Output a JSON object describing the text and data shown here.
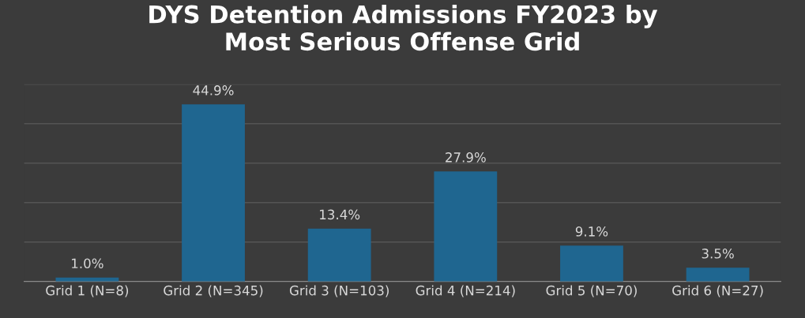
{
  "chart_data": {
    "type": "bar",
    "title": "DYS Detention Admissions FY2023 by\nMost Serious Offense Grid",
    "categories": [
      "Grid 1 (N=8)",
      "Grid 2 (N=345)",
      "Grid 3 (N=103)",
      "Grid 4 (N=214)",
      "Grid 5 (N=70)",
      "Grid 6 (N=27)"
    ],
    "values": [
      1.0,
      44.9,
      13.4,
      27.9,
      9.1,
      3.5
    ],
    "value_labels": [
      "1.0%",
      "44.9%",
      "13.4%",
      "27.9%",
      "9.1%",
      "3.5%"
    ],
    "color": "#1f6690",
    "ylim": [
      0,
      50
    ],
    "yticks": [
      {
        "value": 0,
        "label": null
      },
      {
        "value": 10,
        "label": null
      },
      {
        "value": 20,
        "label": null
      },
      {
        "value": 30,
        "label": null
      },
      {
        "value": 40,
        "label": null
      },
      {
        "value": 50,
        "label": null
      }
    ],
    "grid": "y",
    "tick_labels": "x"
  }
}
